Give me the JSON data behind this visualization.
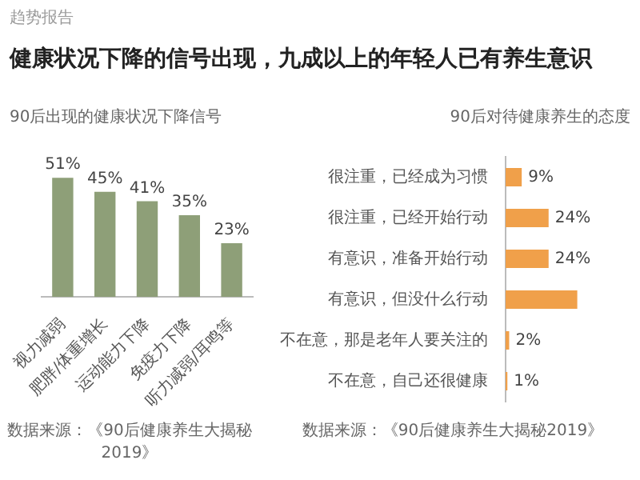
{
  "chart_data": [
    {
      "type": "bar",
      "title": "90后出现的健康状况下降信号",
      "categories": [
        "视力减弱",
        "肥胖/体重增长",
        "运动能力下降",
        "免疫力下降",
        "听力减弱/耳鸣等"
      ],
      "values": [
        51,
        45,
        41,
        35,
        23
      ],
      "value_labels": [
        "51%",
        "45%",
        "41%",
        "35%",
        "23%"
      ],
      "color": "#8e9f78",
      "annotations": [
        "趋势报告",
        "健康状况下降的信号出现，九成以上的年轻人已有养生意识",
        "数据来源：《90后健康养生大揭秘2019》"
      ]
    },
    {
      "type": "bar",
      "orientation": "horizontal",
      "title": "90后对待健康养生的态度",
      "categories": [
        "很注重，已经成为习惯",
        "很注重，已经开始行动",
        "有意识，准备开始行动",
        "有意识，但没什么行动",
        "不在意，那是老年人要关注的",
        "不在意，自己还很健康"
      ],
      "values": [
        9,
        24,
        24,
        40,
        2,
        1
      ],
      "value_labels": [
        "9%",
        "24%",
        "24%",
        null,
        "2%",
        "1%"
      ],
      "color": "#f0a04a",
      "annotations": [
        "数据来源：《90后健康养生大揭秘2019》"
      ]
    }
  ]
}
